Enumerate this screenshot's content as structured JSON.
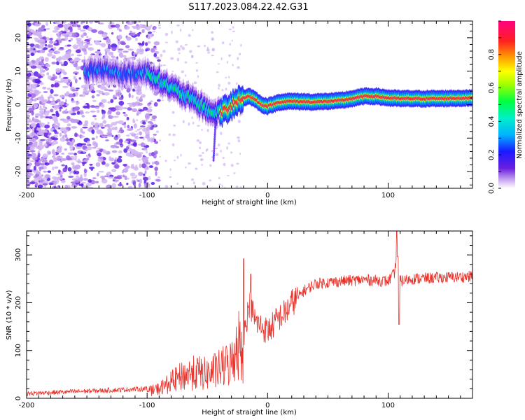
{
  "chart_data": [
    {
      "type": "heatmap",
      "title": "S117.2023.084.22.42.G31",
      "xlabel": "Height of straight line (km)",
      "ylabel": "Frequency (Hz)",
      "xlim": [
        -200,
        170
      ],
      "ylim": [
        -25,
        25
      ],
      "xticks": [
        "-200",
        "-100",
        "0",
        "100"
      ],
      "yticks": [
        "20",
        "10",
        "0",
        "-10",
        "-20"
      ],
      "colorbar": {
        "label": "Normalized spectral amplitude",
        "range": [
          0,
          1
        ],
        "ticks": [
          "0.0",
          "0.2",
          "0.4",
          "0.6",
          "0.8"
        ],
        "colormap": "hsv-like (purple, blue, cyan, green, yellow, orange, red, magenta)"
      },
      "ridge": {
        "description": "Dominant frequency track vs. height",
        "x": [
          -150,
          -140,
          -130,
          -120,
          -110,
          -100,
          -90,
          -80,
          -70,
          -60,
          -50,
          -45,
          -40,
          -35,
          -30,
          -25,
          -20,
          -15,
          -10,
          -5,
          0,
          10,
          20,
          40,
          60,
          70,
          80,
          90,
          100,
          110,
          120,
          140,
          170
        ],
        "y": [
          10,
          10.5,
          10,
          9,
          9.5,
          9.5,
          7.5,
          5,
          3,
          1,
          -1.5,
          -2.5,
          -2.5,
          -1.5,
          0,
          1.2,
          2,
          2.5,
          1.5,
          0,
          -0.5,
          0.8,
          1,
          0.8,
          1.2,
          1.8,
          2.5,
          2.5,
          2,
          1.8,
          1.8,
          1.8,
          2
        ]
      },
      "grid": false,
      "legend": "none"
    },
    {
      "type": "line",
      "xlabel": "Height of straight line (km)",
      "ylabel": "SNR (10 * v/v)",
      "xlim": [
        -200,
        170
      ],
      "ylim": [
        0,
        350
      ],
      "xticks": [
        "-200",
        "-100",
        "0",
        "100"
      ],
      "yticks": [
        "0",
        "100",
        "200",
        "300"
      ],
      "color": "#e8312a",
      "envelope": {
        "x": [
          -200,
          -180,
          -150,
          -120,
          -100,
          -90,
          -80,
          -70,
          -60,
          -50,
          -40,
          -30,
          -25,
          -20,
          -15,
          -10,
          -5,
          0,
          5,
          10,
          15,
          20,
          25,
          30,
          40,
          60,
          80,
          100,
          105,
          108,
          110,
          120,
          140,
          170
        ],
        "y": [
          10,
          12,
          15,
          18,
          20,
          30,
          50,
          70,
          80,
          75,
          90,
          110,
          180,
          130,
          200,
          160,
          150,
          140,
          155,
          170,
          180,
          200,
          210,
          225,
          240,
          245,
          248,
          245,
          260,
          300,
          245,
          250,
          252,
          255
        ]
      },
      "spikes": [
        {
          "x": -20,
          "y": 292
        },
        {
          "x": -14,
          "y": 260
        },
        {
          "x": 107,
          "y": 350
        },
        {
          "x": 109,
          "y": 155
        }
      ],
      "grid": false,
      "legend": "none"
    }
  ]
}
